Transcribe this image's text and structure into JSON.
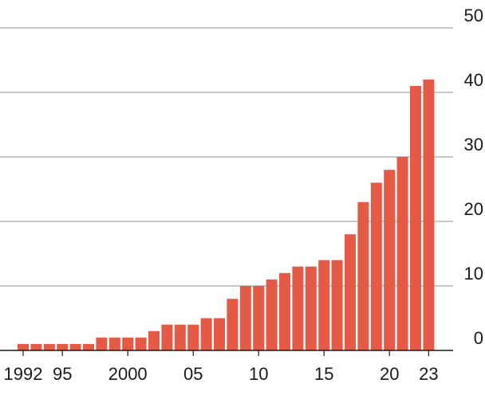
{
  "chart_data": {
    "type": "bar",
    "title": "",
    "xlabel": "",
    "ylabel": "",
    "categories": [
      1992,
      1993,
      1994,
      1995,
      1996,
      1997,
      1998,
      1999,
      2000,
      2001,
      2002,
      2003,
      2004,
      2005,
      2006,
      2007,
      2008,
      2009,
      2010,
      2011,
      2012,
      2013,
      2014,
      2015,
      2016,
      2017,
      2018,
      2019,
      2020,
      2021,
      2022,
      2023
    ],
    "values": [
      1,
      1,
      1,
      1,
      1,
      1,
      2,
      2,
      2,
      2,
      3,
      4,
      4,
      4,
      5,
      5,
      8,
      10,
      10,
      11,
      12,
      13,
      13,
      14,
      14,
      18,
      23,
      26,
      28,
      30,
      41,
      42
    ],
    "ylim": [
      0,
      50
    ],
    "yticks": [
      0,
      10,
      20,
      30,
      40,
      50
    ],
    "ytick_labels": [
      "0",
      "10",
      "20",
      "30",
      "40",
      "50"
    ],
    "xtick_labels": [
      {
        "year": 1992,
        "label": "1992"
      },
      {
        "year": 1995,
        "label": "95"
      },
      {
        "year": 2000,
        "label": "2000"
      },
      {
        "year": 2005,
        "label": "05"
      },
      {
        "year": 2010,
        "label": "10"
      },
      {
        "year": 2015,
        "label": "15"
      },
      {
        "year": 2020,
        "label": "20"
      },
      {
        "year": 2023,
        "label": "23"
      }
    ],
    "grid": true,
    "y_axis_side": "right",
    "bar_color": "#e45a47"
  }
}
